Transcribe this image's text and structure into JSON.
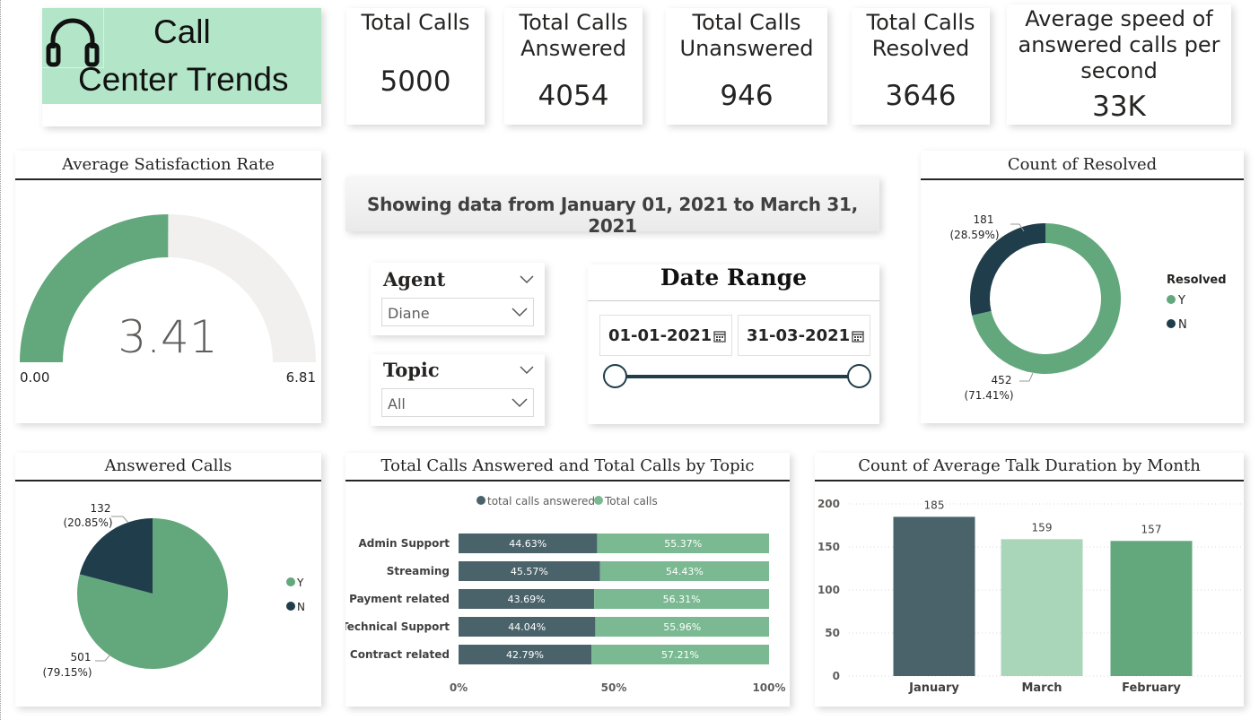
{
  "header": {
    "title_line1": "Call",
    "title_line2": "Center Trends",
    "icon": "headset-icon",
    "bg_color": "#b3e6c9"
  },
  "kpis": [
    {
      "label_lines": [
        "Total Calls"
      ],
      "value": "5000"
    },
    {
      "label_lines": [
        "Total Calls",
        "Answered"
      ],
      "value": "4054"
    },
    {
      "label_lines": [
        "Total Calls",
        "Unanswered"
      ],
      "value": "946"
    },
    {
      "label_lines": [
        "Total Calls",
        "Resolved"
      ],
      "value": "3646"
    },
    {
      "label_lines": [
        "Average speed of",
        "answered calls per",
        "second"
      ],
      "value": "33K"
    }
  ],
  "banner": {
    "text": "Showing data from January 01, 2021 to March 31, 2021"
  },
  "slicers": {
    "agent": {
      "title": "Agent",
      "selected": "Diane"
    },
    "topic": {
      "title": "Topic",
      "selected": "All"
    },
    "date_range": {
      "title": "Date Range",
      "start": "01-01-2021",
      "end": "31-03-2021"
    }
  },
  "colors": {
    "green": "#62a87c",
    "dark": "#1f3d4a",
    "slate": "#4a636a",
    "light_green": "#a9d6b8",
    "mid_green": "#7ab991",
    "gauge_bg": "#f1f0ee"
  },
  "chart_data": [
    {
      "id": "satisfaction_gauge",
      "type": "gauge",
      "title": "Average Satisfaction Rate",
      "value": 3.41,
      "value_label": "3.41",
      "min": 0,
      "max": 6.81,
      "min_label": "0.00",
      "max_label": "6.81"
    },
    {
      "id": "resolved_donut",
      "type": "pie",
      "style": "donut",
      "title": "Count of Resolved",
      "legend_title": "Resolved",
      "legend_position": "right",
      "slices": [
        {
          "name": "Y",
          "value": 452,
          "label": "452",
          "pct": "(71.41%)"
        },
        {
          "name": "N",
          "value": 181,
          "label": "181",
          "pct": "(28.59%)"
        }
      ]
    },
    {
      "id": "answered_pie",
      "type": "pie",
      "title": "Answered Calls",
      "legend_position": "right",
      "slices": [
        {
          "name": "Y",
          "value": 501,
          "label": "501",
          "pct": "(79.15%)"
        },
        {
          "name": "N",
          "value": 132,
          "label": "132",
          "pct": "(20.85%)"
        }
      ]
    },
    {
      "id": "topic_stacked",
      "type": "bar",
      "orientation": "horizontal",
      "stacked": "100%",
      "title": "Total Calls Answered and Total Calls by Topic",
      "legend_position": "top",
      "categories": [
        "Admin Support",
        "Streaming",
        "Payment related",
        "Technical Support",
        "Contract related"
      ],
      "series": [
        {
          "name": "total calls answered",
          "values": [
            44.63,
            45.57,
            43.69,
            44.04,
            42.79
          ],
          "labels": [
            "44.63%",
            "45.57%",
            "43.69%",
            "44.04%",
            "42.79%"
          ]
        },
        {
          "name": "Total calls",
          "values": [
            55.37,
            54.43,
            56.31,
            55.96,
            57.21
          ],
          "labels": [
            "55.37%",
            "54.43%",
            "56.31%",
            "55.96%",
            "57.21%"
          ]
        }
      ],
      "xticks": [
        "0%",
        "50%",
        "100%"
      ],
      "xlim": [
        0,
        100
      ]
    },
    {
      "id": "talk_duration",
      "type": "bar",
      "title": "Count of Average Talk Duration by Month",
      "categories": [
        "January",
        "March",
        "February"
      ],
      "values": [
        185,
        159,
        157
      ],
      "value_labels": [
        "185",
        "159",
        "157"
      ],
      "yticks": [
        "0",
        "50",
        "100",
        "150",
        "200"
      ],
      "ylim": [
        0,
        200
      ],
      "grid": true
    }
  ]
}
